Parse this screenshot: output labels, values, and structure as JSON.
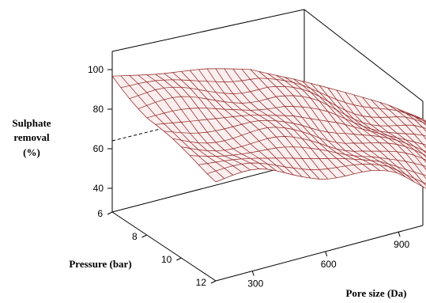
{
  "chart_data": {
    "type": "surface3d",
    "z_axis": {
      "title_lines": [
        "Sulphate",
        "removal",
        "(%)"
      ],
      "ticks": [
        "40",
        "60",
        "80",
        "100"
      ],
      "range": [
        40,
        100
      ]
    },
    "y_axis": {
      "title": "Pressure (bar)",
      "ticks": [
        "6",
        "8",
        "10",
        "12"
      ],
      "range": [
        6,
        12
      ]
    },
    "x_axis": {
      "title": "Pore size (Da)",
      "ticks": [
        "300",
        "600",
        "900"
      ],
      "range": [
        150,
        1000
      ]
    },
    "reference_plane": 63,
    "surface": {
      "pore_size": [
        150,
        275,
        400,
        525,
        650,
        775,
        900,
        1000
      ],
      "pressure": [
        6,
        8,
        10,
        12
      ],
      "removal": [
        [
          99,
          92,
          88,
          85
        ],
        [
          95,
          89,
          85,
          82
        ],
        [
          92,
          86,
          81,
          78
        ],
        [
          87,
          81,
          76,
          72
        ],
        [
          78,
          73,
          69,
          66
        ],
        [
          68,
          63,
          59,
          56
        ],
        [
          58,
          54,
          49,
          46
        ],
        [
          48,
          44,
          41,
          38
        ]
      ]
    }
  }
}
